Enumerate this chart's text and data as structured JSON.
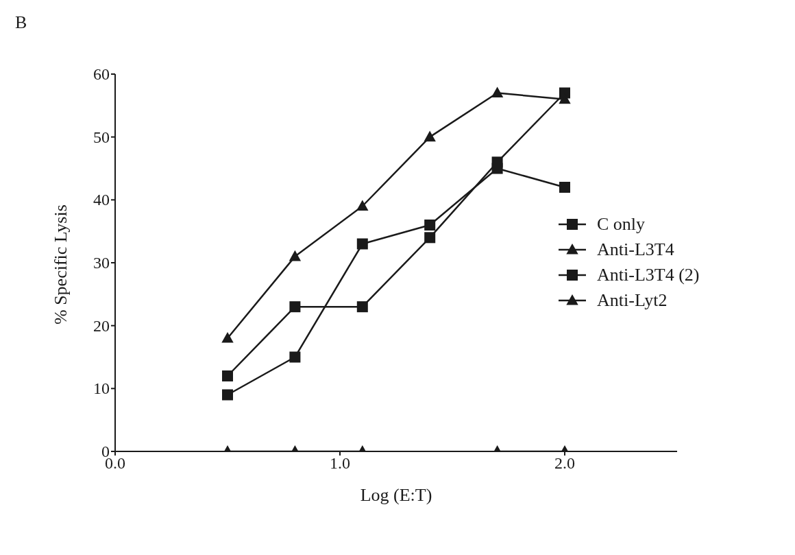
{
  "chart_data": {
    "type": "line",
    "xlabel": "Log (E:T)",
    "ylabel": "% Specific Lysis",
    "annotations": [
      "B"
    ],
    "x": [
      0.5,
      0.8,
      1.1,
      1.4,
      1.7,
      2.0
    ],
    "xlim": [
      0,
      2.5
    ],
    "xticks": [
      {
        "value": 0,
        "label": "0.0"
      },
      {
        "value": 1,
        "label": "1.0"
      },
      {
        "value": 2,
        "label": "2.0"
      }
    ],
    "ylim": [
      0,
      60
    ],
    "yticks": [
      0,
      10,
      20,
      30,
      40,
      50,
      60
    ],
    "grid": false,
    "legend": "right",
    "line_style": "solid",
    "series": [
      {
        "name": "C only",
        "color": "#1a1a1a",
        "marker": "square",
        "values": [
          12,
          23,
          23,
          34,
          46,
          57
        ]
      },
      {
        "name": "Anti-L3T4",
        "color": "#1a1a1a",
        "marker": "triangle",
        "values": [
          18,
          31,
          39,
          50,
          57,
          56
        ]
      },
      {
        "name": "Anti-L3T4 (2)",
        "color": "#1a1a1a",
        "marker": "square",
        "values": [
          9,
          15,
          33,
          36,
          45,
          42
        ]
      },
      {
        "name": "Anti-Lyt2",
        "color": "#1a1a1a",
        "marker": "triangle",
        "values": [
          0,
          0,
          0,
          null,
          0,
          0
        ]
      }
    ]
  }
}
